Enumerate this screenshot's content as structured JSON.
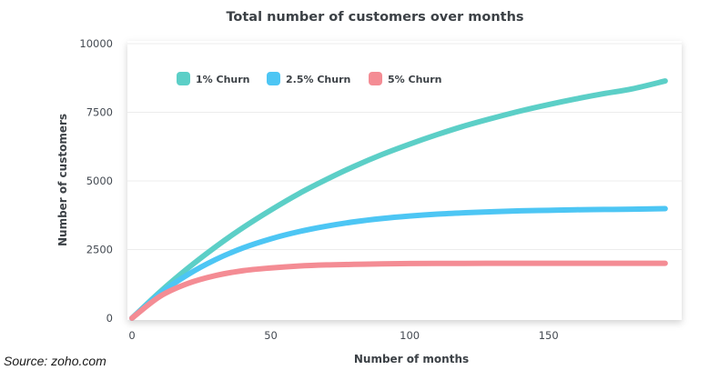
{
  "chart_data": {
    "type": "line",
    "title": "Total number of customers over months",
    "xlabel": "Number of months",
    "ylabel": "Number of customers",
    "xlim": [
      0,
      195
    ],
    "ylim": [
      0,
      10000
    ],
    "x_ticks": [
      0,
      50,
      100,
      150
    ],
    "y_ticks": [
      0,
      2500,
      5000,
      7500,
      10000
    ],
    "grid": true,
    "legend_position": "top-left",
    "x": [
      0,
      10,
      20,
      30,
      40,
      50,
      60,
      70,
      80,
      90,
      100,
      110,
      120,
      130,
      140,
      150,
      160,
      170,
      180,
      192
    ],
    "series": [
      {
        "name": "1% Churn",
        "color": "#5ccfc7",
        "values": [
          0,
          950,
          1810,
          2590,
          3300,
          3940,
          4530,
          5050,
          5530,
          5960,
          6340,
          6690,
          7010,
          7290,
          7550,
          7780,
          7990,
          8180,
          8350,
          8640
        ]
      },
      {
        "name": "2.5% Churn",
        "color": "#4dc6f4",
        "values": [
          0,
          890,
          1580,
          2130,
          2560,
          2890,
          3150,
          3350,
          3510,
          3630,
          3720,
          3790,
          3840,
          3880,
          3910,
          3930,
          3950,
          3960,
          3970,
          3990
        ]
      },
      {
        "name": "5% Churn",
        "color": "#f48c94",
        "values": [
          0,
          790,
          1260,
          1550,
          1730,
          1830,
          1900,
          1940,
          1960,
          1980,
          1990,
          1995,
          1997,
          1998,
          1999,
          2000,
          2000,
          2000,
          2000,
          2000
        ]
      }
    ]
  },
  "source_text": "Source: zoho.com"
}
